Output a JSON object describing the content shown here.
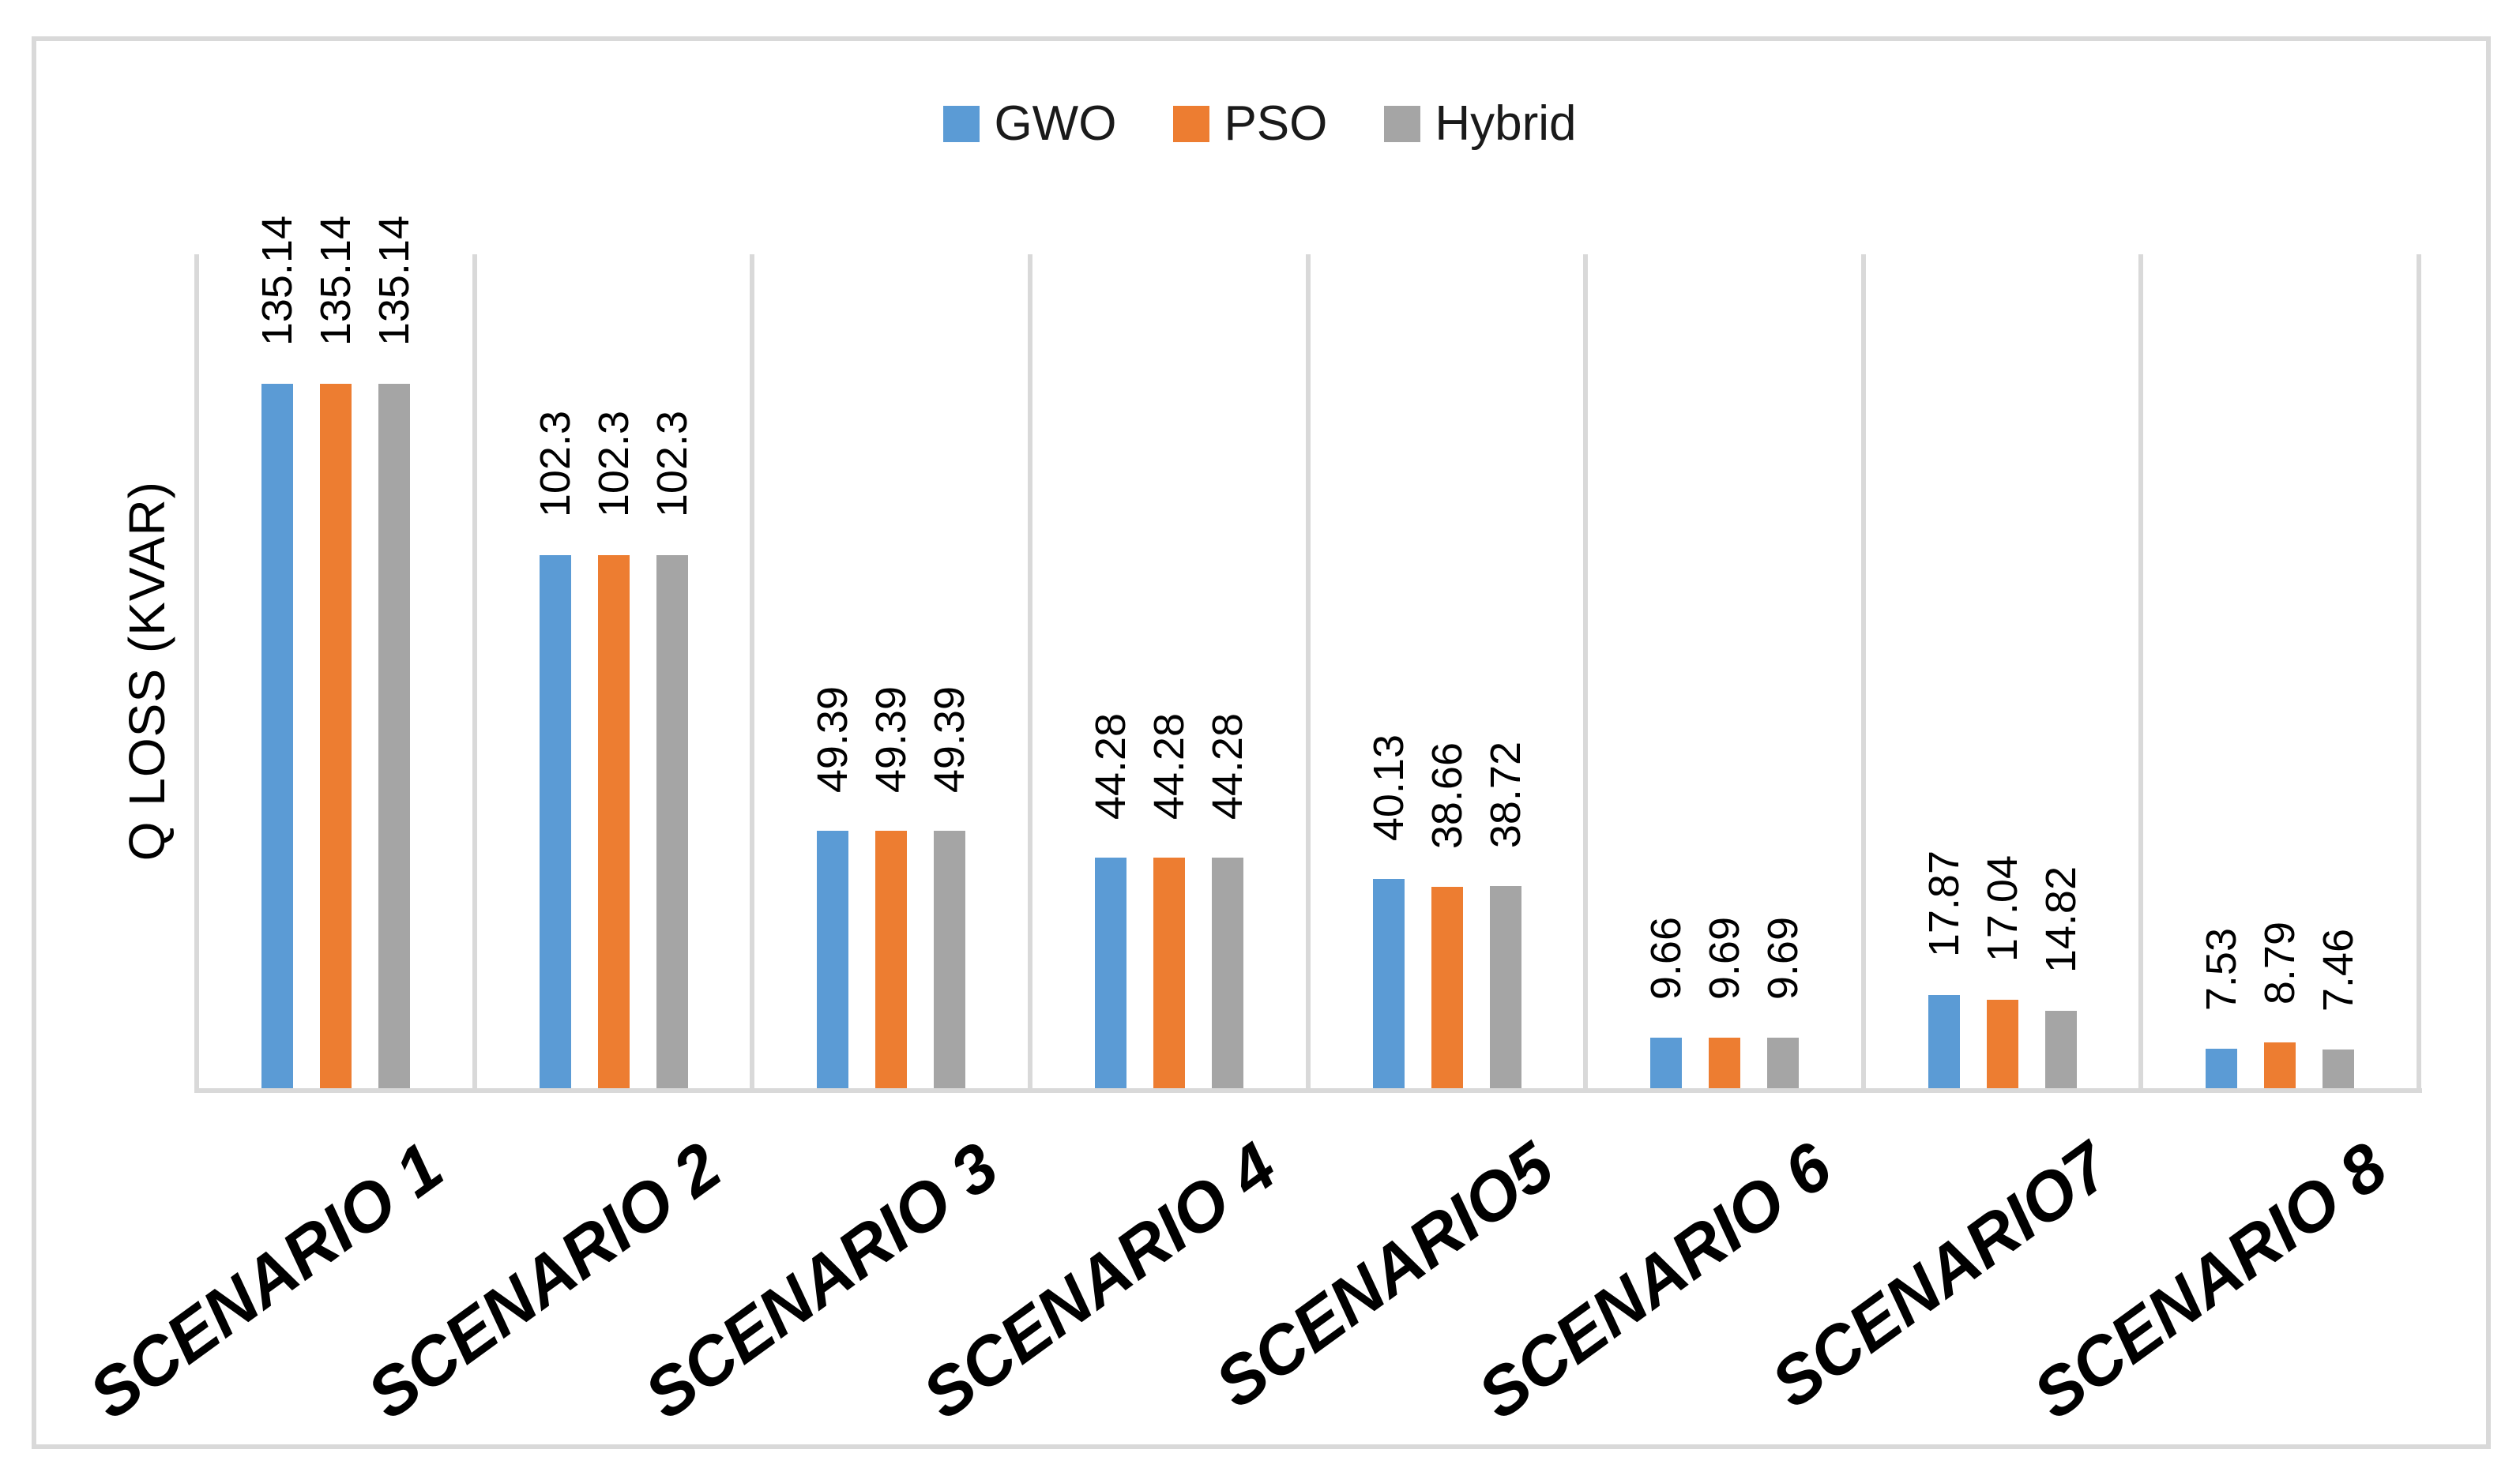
{
  "figure": {
    "background": "#ffffff",
    "border_color": "#d9d9d9",
    "gridline_color": "#d9d9d9"
  },
  "legend": {
    "items": [
      {
        "label": "GWO",
        "color": "#5b9bd5"
      },
      {
        "label": "PSO",
        "color": "#ed7d31"
      },
      {
        "label": "Hybrid",
        "color": "#a5a5a5"
      }
    ]
  },
  "y_axis": {
    "title": "Q LOSS (KVAR)"
  },
  "chart_data": {
    "type": "bar",
    "title": "",
    "xlabel": "",
    "ylabel": "Q LOSS (KVAR)",
    "categories": [
      "SCENARIO 1",
      "SCENARIO 2",
      "SCENARIO 3",
      "SCENARIO 4",
      "SCENARIO5",
      "SCENARIO 6",
      "SCENARIO7",
      "SCENARIO 8"
    ],
    "series": [
      {
        "name": "GWO",
        "color": "#5b9bd5",
        "values": [
          135.14,
          102.3,
          49.39,
          44.28,
          40.13,
          9.66,
          17.87,
          7.53
        ]
      },
      {
        "name": "PSO",
        "color": "#ed7d31",
        "values": [
          135.14,
          102.3,
          49.39,
          44.28,
          38.66,
          9.69,
          17.04,
          8.79
        ]
      },
      {
        "name": "Hybrid",
        "color": "#a5a5a5",
        "values": [
          135.14,
          102.3,
          49.39,
          44.28,
          38.72,
          9.69,
          14.82,
          7.46
        ]
      }
    ],
    "ylim": [
      0,
      160
    ],
    "y_tick_labels_visible": false,
    "grid": "vertical-category-separators",
    "legend_position": "top-center",
    "data_labels": "rotated-90-above-bars",
    "x_tick_rotation_deg": -36
  }
}
